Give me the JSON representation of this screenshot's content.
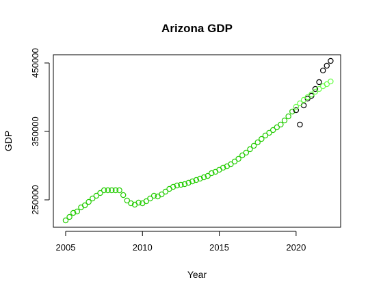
{
  "chart_data": {
    "type": "scatter",
    "title": "Arizona GDP",
    "xlabel": "Year",
    "ylabel": "GDP",
    "xlim": [
      2004.2,
      2022.9
    ],
    "ylim": [
      210000,
      462000
    ],
    "xticks": [
      2005,
      2010,
      2015,
      2020
    ],
    "yticks": [
      250000,
      350000,
      450000
    ],
    "grid": false,
    "colors": {
      "actual": "#000000",
      "fitted": "#22cc00",
      "forecast": "#66ff44"
    },
    "series": [
      {
        "role": "actual",
        "x": [
          2020.0,
          2020.25,
          2020.5,
          2020.75,
          2021.0,
          2021.25,
          2021.5,
          2021.75,
          2022.0,
          2022.25
        ],
        "y": [
          381000,
          360000,
          388000,
          398000,
          402000,
          412000,
          422000,
          439000,
          446000,
          453000
        ]
      },
      {
        "role": "fitted",
        "x": [
          2005.0,
          2005.25,
          2005.5,
          2005.75,
          2006.0,
          2006.25,
          2006.5,
          2006.75,
          2007.0,
          2007.25,
          2007.5,
          2007.75,
          2008.0,
          2008.25,
          2008.5,
          2008.75,
          2009.0,
          2009.25,
          2009.5,
          2009.75,
          2010.0,
          2010.25,
          2010.5,
          2010.75,
          2011.0,
          2011.25,
          2011.5,
          2011.75,
          2012.0,
          2012.25,
          2012.5,
          2012.75,
          2013.0,
          2013.25,
          2013.5,
          2013.75,
          2014.0,
          2014.25,
          2014.5,
          2014.75,
          2015.0,
          2015.25,
          2015.5,
          2015.75,
          2016.0,
          2016.25,
          2016.5,
          2016.75,
          2017.0,
          2017.25,
          2017.5,
          2017.75,
          2018.0,
          2018.25,
          2018.5,
          2018.75,
          2019.0,
          2019.25,
          2019.5,
          2019.75
        ],
        "y": [
          220000,
          225000,
          231000,
          233000,
          239000,
          242000,
          247000,
          252000,
          256000,
          260000,
          264000,
          264000,
          264000,
          264000,
          264000,
          257000,
          249000,
          245000,
          243000,
          246000,
          245000,
          248000,
          252000,
          256000,
          255000,
          258000,
          262000,
          266000,
          269000,
          271000,
          272000,
          273000,
          275000,
          277000,
          279000,
          281000,
          283000,
          285000,
          289000,
          291000,
          294000,
          297000,
          299000,
          302000,
          306000,
          310000,
          315000,
          319000,
          324000,
          329000,
          334000,
          339000,
          344000,
          348000,
          352000,
          356000,
          360000,
          366000,
          372000,
          379000
        ]
      },
      {
        "role": "forecast",
        "x": [
          2020.0,
          2020.25,
          2020.5,
          2020.75,
          2021.0,
          2021.25,
          2021.5,
          2021.75,
          2022.0,
          2022.25
        ],
        "y": [
          386000,
          391000,
          396000,
          400000,
          404000,
          408000,
          412000,
          416000,
          419000,
          423000
        ]
      }
    ]
  }
}
